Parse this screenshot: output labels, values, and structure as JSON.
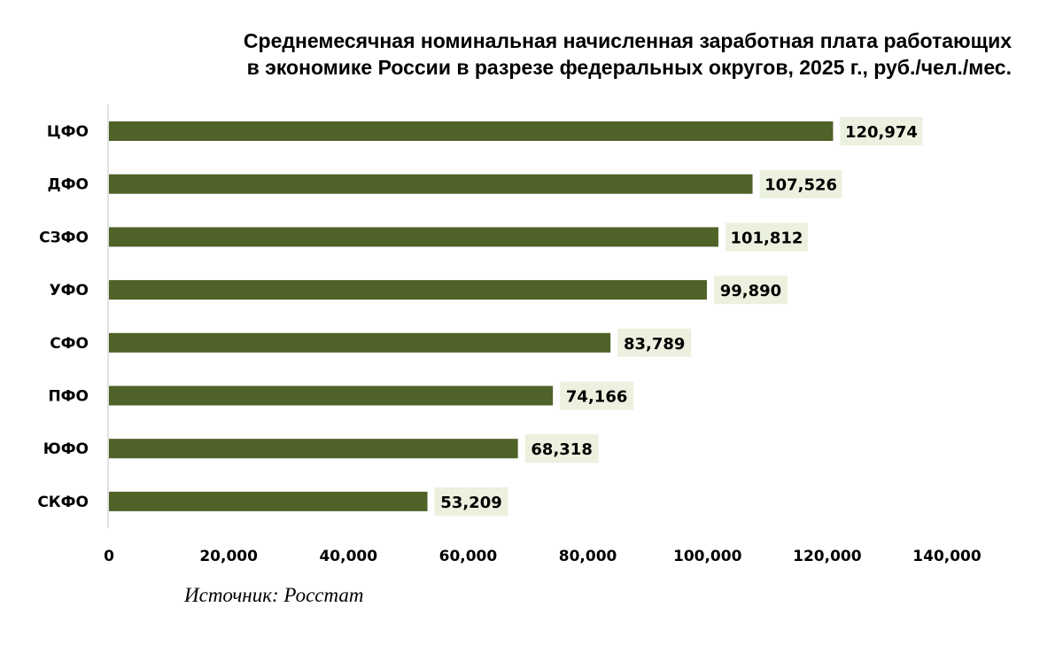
{
  "chart_data": {
    "type": "bar",
    "orientation": "horizontal",
    "title": [
      "Среднемесячная номинальная начисленная заработная плата работающих",
      "в экономике России в разрезе федеральных округов, 2025 г., руб./чел./мес."
    ],
    "categories": [
      "ЦФО",
      "ДФО",
      "СЗФО",
      "УФО",
      "СФО",
      "ПФО",
      "ЮФО",
      "СКФО"
    ],
    "values": [
      120974,
      107526,
      101812,
      99890,
      83789,
      74166,
      68318,
      53209
    ],
    "value_labels": [
      "120,974",
      "107,526",
      "101,812",
      "99,890",
      "83,789",
      "74,166",
      "68,318",
      "53,209"
    ],
    "xlim": [
      0,
      140000
    ],
    "x_ticks": [
      0,
      20000,
      40000,
      60000,
      80000,
      100000,
      120000,
      140000
    ],
    "x_tick_labels": [
      "0",
      "20,000",
      "40,000",
      "60,000",
      "80,000",
      "100,000",
      "120,000",
      "140,000"
    ],
    "grid": false,
    "legend": "none",
    "source": "Источник: Росстат",
    "colors": {
      "bar": "#4f6228",
      "label_bg": "#ebf1de",
      "axis": "#d9d9d9"
    }
  }
}
